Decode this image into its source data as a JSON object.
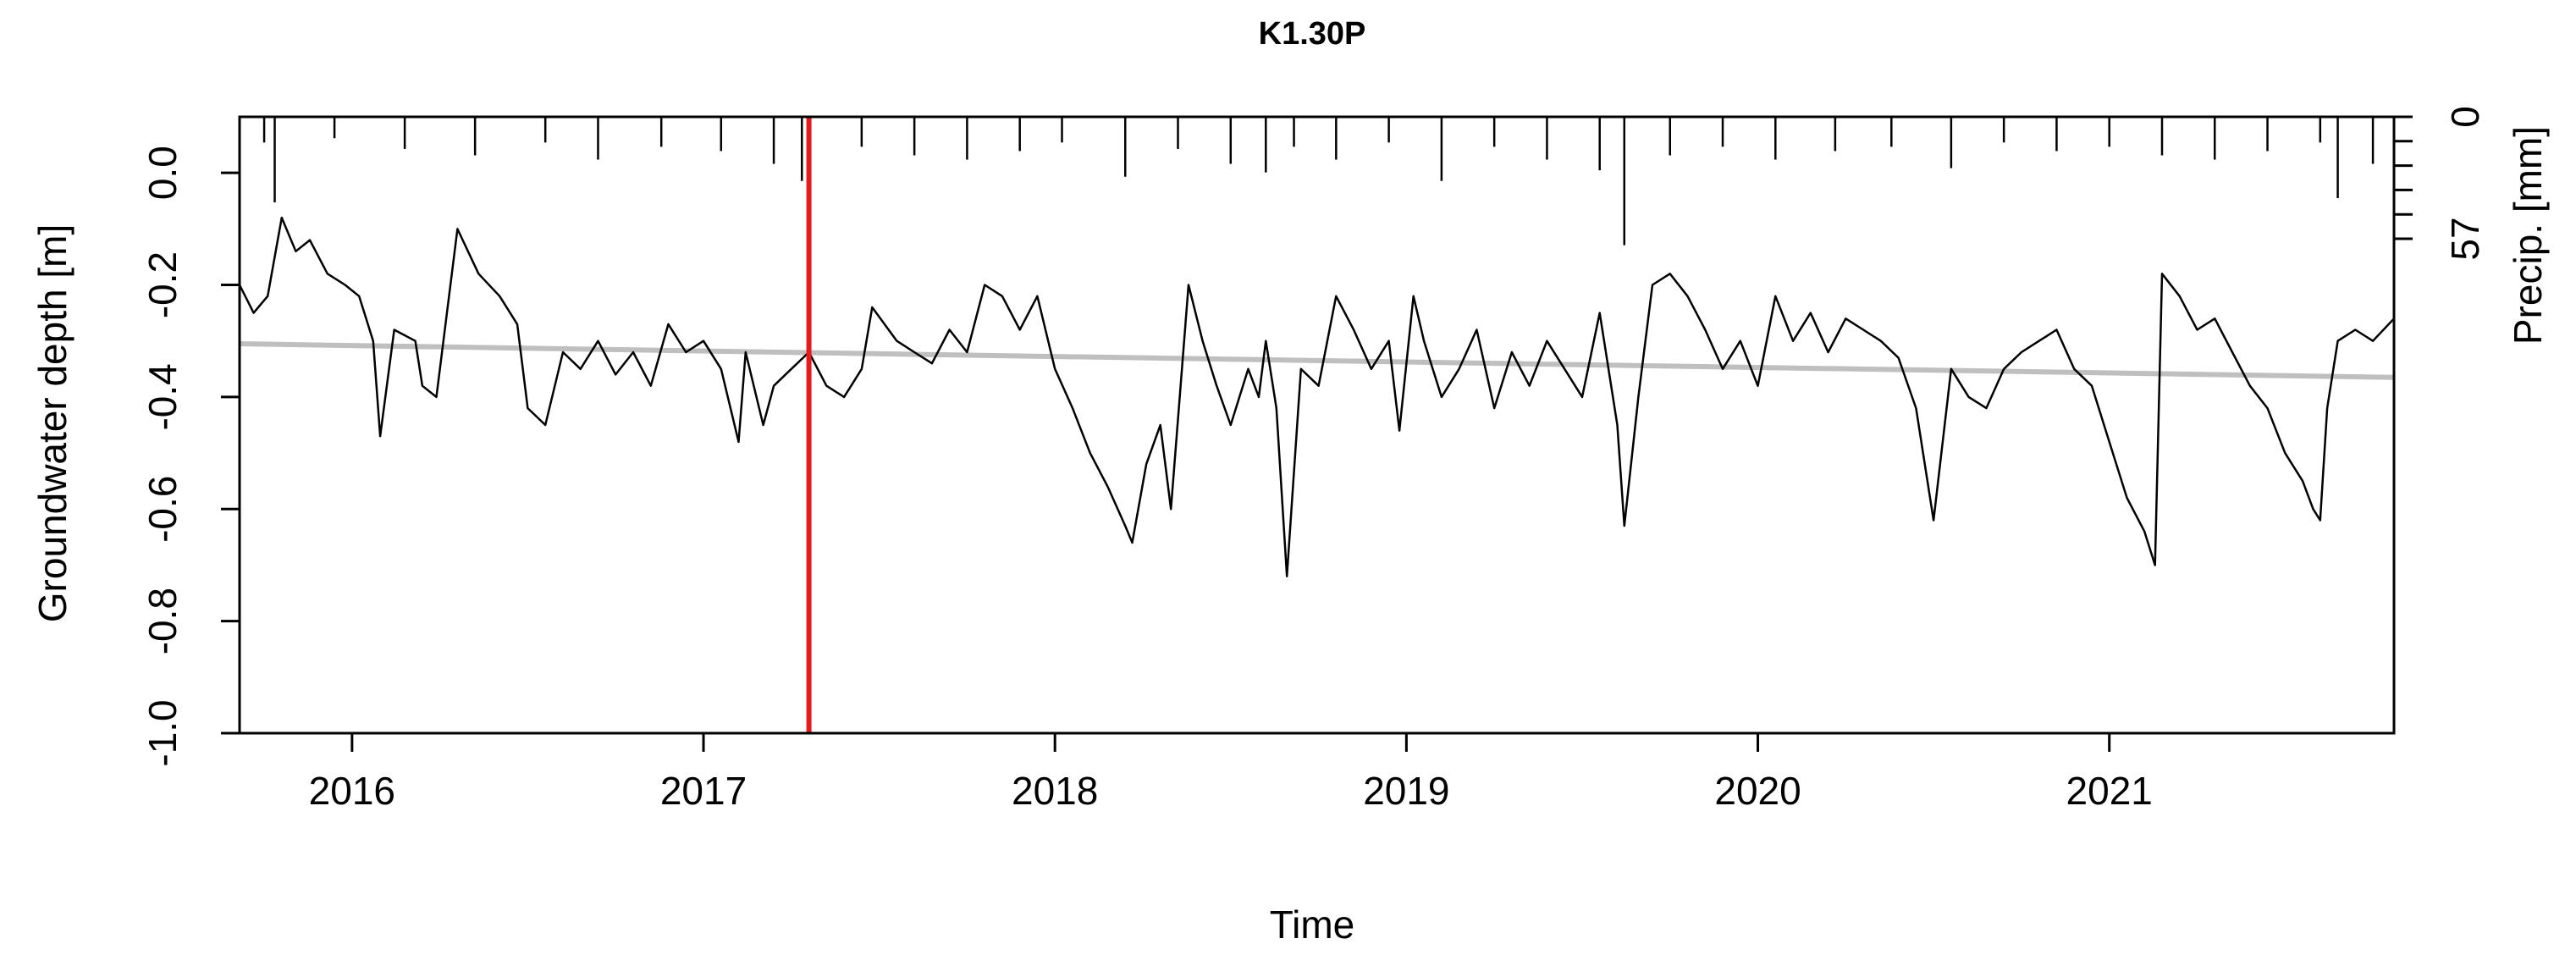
{
  "chart_data": {
    "type": "line",
    "title": "K1.30P",
    "xlabel": "Time",
    "ylabel": "Groundwater depth [m]",
    "y2label": "Precip. [mm]",
    "xlim": [
      2015.68,
      2021.81
    ],
    "ylim": [
      -1.0,
      0.1
    ],
    "y2lim_reversed": [
      0,
      57
    ],
    "x_ticks": [
      "2016",
      "2017",
      "2018",
      "2019",
      "2020",
      "2021"
    ],
    "y_ticks": [
      "-1.0",
      "-0.8",
      "-0.6",
      "-0.4",
      "-0.2",
      "0.0"
    ],
    "y2_ticks": [
      "0",
      "57"
    ],
    "marker_x": 2017.3,
    "marker_color": "#e41a1c",
    "trend_color": "#bfbfbf",
    "groundwater": {
      "x": [
        2015.68,
        2015.72,
        2015.76,
        2015.8,
        2015.84,
        2015.88,
        2015.93,
        2015.98,
        2016.02,
        2016.06,
        2016.08,
        2016.12,
        2016.18,
        2016.2,
        2016.24,
        2016.3,
        2016.36,
        2016.42,
        2016.47,
        2016.5,
        2016.55,
        2016.6,
        2016.65,
        2016.7,
        2016.75,
        2016.8,
        2016.85,
        2016.9,
        2016.95,
        2017.0,
        2017.05,
        2017.1,
        2017.12,
        2017.17,
        2017.2,
        2017.25,
        2017.3,
        2017.35,
        2017.4,
        2017.45,
        2017.48,
        2017.55,
        2017.6,
        2017.65,
        2017.7,
        2017.75,
        2017.8,
        2017.85,
        2017.9,
        2017.95,
        2018.0,
        2018.05,
        2018.1,
        2018.15,
        2018.2,
        2018.22,
        2018.26,
        2018.3,
        2018.33,
        2018.38,
        2018.42,
        2018.46,
        2018.5,
        2018.55,
        2018.58,
        2018.6,
        2018.63,
        2018.66,
        2018.7,
        2018.75,
        2018.8,
        2018.85,
        2018.9,
        2018.95,
        2018.98,
        2019.02,
        2019.05,
        2019.1,
        2019.15,
        2019.2,
        2019.25,
        2019.3,
        2019.35,
        2019.4,
        2019.45,
        2019.5,
        2019.55,
        2019.6,
        2019.62,
        2019.66,
        2019.7,
        2019.75,
        2019.8,
        2019.85,
        2019.9,
        2019.95,
        2020.0,
        2020.05,
        2020.1,
        2020.15,
        2020.2,
        2020.25,
        2020.3,
        2020.35,
        2020.4,
        2020.45,
        2020.5,
        2020.55,
        2020.6,
        2020.65,
        2020.7,
        2020.75,
        2020.8,
        2020.85,
        2020.9,
        2020.95,
        2021.0,
        2021.05,
        2021.1,
        2021.13,
        2021.15,
        2021.2,
        2021.25,
        2021.3,
        2021.35,
        2021.4,
        2021.45,
        2021.5,
        2021.55,
        2021.58,
        2021.6,
        2021.62,
        2021.65,
        2021.7,
        2021.75,
        2021.81
      ],
      "y": [
        -0.2,
        -0.25,
        -0.22,
        -0.08,
        -0.14,
        -0.12,
        -0.18,
        -0.2,
        -0.22,
        -0.3,
        -0.47,
        -0.28,
        -0.3,
        -0.38,
        -0.4,
        -0.1,
        -0.18,
        -0.22,
        -0.27,
        -0.42,
        -0.45,
        -0.32,
        -0.35,
        -0.3,
        -0.36,
        -0.32,
        -0.38,
        -0.27,
        -0.32,
        -0.3,
        -0.35,
        -0.48,
        -0.32,
        -0.45,
        -0.38,
        -0.35,
        -0.32,
        -0.38,
        -0.4,
        -0.35,
        -0.24,
        -0.3,
        -0.32,
        -0.34,
        -0.28,
        -0.32,
        -0.2,
        -0.22,
        -0.28,
        -0.22,
        -0.35,
        -0.42,
        -0.5,
        -0.56,
        -0.63,
        -0.66,
        -0.52,
        -0.45,
        -0.6,
        -0.2,
        -0.3,
        -0.38,
        -0.45,
        -0.35,
        -0.4,
        -0.3,
        -0.42,
        -0.72,
        -0.35,
        -0.38,
        -0.22,
        -0.28,
        -0.35,
        -0.3,
        -0.46,
        -0.22,
        -0.3,
        -0.4,
        -0.35,
        -0.28,
        -0.42,
        -0.32,
        -0.38,
        -0.3,
        -0.35,
        -0.4,
        -0.25,
        -0.45,
        -0.63,
        -0.4,
        -0.2,
        -0.18,
        -0.22,
        -0.28,
        -0.35,
        -0.3,
        -0.38,
        -0.22,
        -0.3,
        -0.25,
        -0.32,
        -0.26,
        -0.28,
        -0.3,
        -0.33,
        -0.42,
        -0.62,
        -0.35,
        -0.4,
        -0.42,
        -0.35,
        -0.32,
        -0.3,
        -0.28,
        -0.35,
        -0.38,
        -0.48,
        -0.58,
        -0.64,
        -0.7,
        -0.18,
        -0.22,
        -0.28,
        -0.26,
        -0.32,
        -0.38,
        -0.42,
        -0.5,
        -0.55,
        -0.6,
        -0.62,
        -0.42,
        -0.3,
        -0.28,
        -0.3,
        -0.26
      ],
      "color": "#000000"
    },
    "trend": {
      "x": [
        2015.68,
        2021.81
      ],
      "y": [
        -0.305,
        -0.365
      ]
    },
    "precipitation": {
      "x": [
        2015.75,
        2015.78,
        2015.95,
        2016.15,
        2016.35,
        2016.55,
        2016.7,
        2016.88,
        2017.05,
        2017.2,
        2017.28,
        2017.45,
        2017.6,
        2017.75,
        2017.9,
        2018.02,
        2018.2,
        2018.35,
        2018.5,
        2018.6,
        2018.68,
        2018.8,
        2018.95,
        2019.1,
        2019.25,
        2019.4,
        2019.55,
        2019.62,
        2019.75,
        2019.9,
        2020.05,
        2020.22,
        2020.38,
        2020.55,
        2020.7,
        2020.85,
        2021.0,
        2021.15,
        2021.3,
        2021.45,
        2021.6,
        2021.65,
        2021.75
      ],
      "values": [
        12,
        40,
        10,
        15,
        18,
        12,
        20,
        14,
        16,
        22,
        30,
        14,
        18,
        20,
        16,
        12,
        28,
        15,
        22,
        26,
        14,
        20,
        12,
        30,
        14,
        20,
        25,
        60,
        18,
        14,
        20,
        16,
        14,
        24,
        12,
        16,
        14,
        18,
        20,
        16,
        12,
        38,
        22
      ]
    }
  }
}
